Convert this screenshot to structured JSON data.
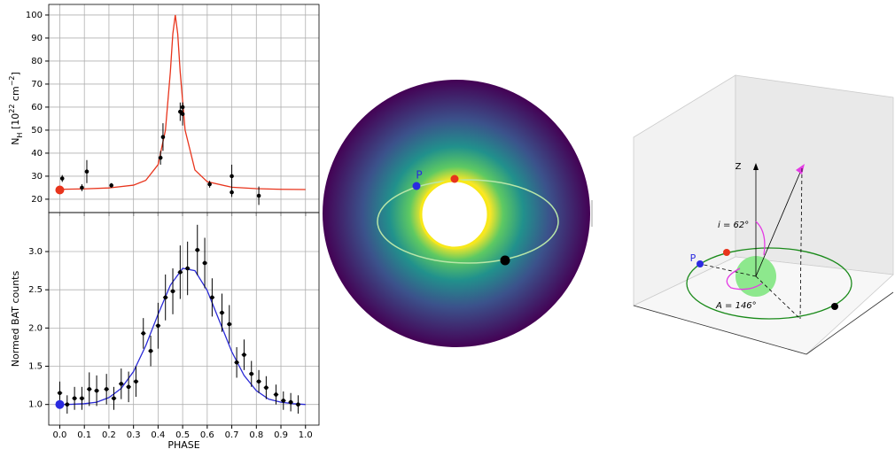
{
  "chart_data": [
    {
      "type": "errorbar",
      "ylabel_parts": [
        "N",
        "H",
        " [10",
        "22",
        " cm",
        "−2",
        "]"
      ],
      "ylabel_styles": [
        "normal",
        "sub",
        "normal",
        "sup",
        "normal",
        "sup",
        "normal"
      ],
      "xlim": [
        -0.045,
        1.055
      ],
      "ylim": [
        14.2,
        104.6
      ],
      "xticks": [
        0,
        0.1,
        0.2,
        0.3,
        0.4,
        0.5,
        0.6,
        0.7,
        0.8,
        0.9,
        1
      ],
      "yticks": [
        20,
        30,
        40,
        50,
        60,
        70,
        80,
        90,
        100
      ],
      "grid": true,
      "model": {
        "color": "#e8341c",
        "x": [
          0,
          0.1,
          0.2,
          0.3,
          0.35,
          0.4,
          0.43,
          0.45,
          0.46,
          0.47,
          0.48,
          0.49,
          0.51,
          0.55,
          0.6,
          0.7,
          0.8,
          0.9,
          1.0
        ],
        "values": [
          24.3,
          24.5,
          24.9,
          26.1,
          28.2,
          35.0,
          50.0,
          75.3,
          91.8,
          100,
          91.8,
          75.3,
          50.0,
          32.7,
          27.6,
          25.2,
          24.6,
          24.3,
          24.2
        ]
      },
      "points": {
        "color": "#000000",
        "x": [
          0.01,
          0.09,
          0.11,
          0.21,
          0.41,
          0.42,
          0.49,
          0.5,
          0.5,
          0.61,
          0.7,
          0.7,
          0.81
        ],
        "values": [
          29,
          25,
          32,
          26,
          38,
          47,
          58,
          57,
          60,
          26.5,
          23,
          30,
          21.5
        ],
        "yerr": [
          1.5,
          1.5,
          5,
          1,
          3,
          6,
          4,
          5,
          2,
          1.5,
          2,
          5,
          4
        ]
      },
      "marker": {
        "color": "#e8341c",
        "x": 0,
        "value": 24
      }
    },
    {
      "type": "errorbar",
      "ylabel": "Normed BAT counts",
      "xlabel": "PHASE",
      "xlim": [
        -0.045,
        1.055
      ],
      "ylim": [
        0.73,
        3.51
      ],
      "xticks": [
        {
          "value": 0,
          "label": "0.0"
        },
        0.1,
        0.2,
        0.3,
        0.4,
        0.5,
        0.6,
        0.7,
        0.8,
        0.9,
        {
          "value": 1,
          "label": "1.0"
        }
      ],
      "yticks": [
        {
          "value": 1,
          "label": "1.0"
        },
        1.5,
        {
          "value": 2,
          "label": "2.0"
        },
        2.5,
        {
          "value": 3,
          "label": "3.0"
        }
      ],
      "grid": true,
      "model": {
        "color": "#2a2ad6",
        "x": [
          0,
          0.05,
          0.1,
          0.15,
          0.2,
          0.25,
          0.3,
          0.35,
          0.4,
          0.45,
          0.5,
          0.55,
          0.6,
          0.65,
          0.7,
          0.75,
          0.8,
          0.85,
          0.9,
          0.95,
          1.0
        ],
        "values": [
          1.0,
          1.003,
          1.01,
          1.03,
          1.09,
          1.21,
          1.43,
          1.77,
          2.18,
          2.56,
          2.78,
          2.75,
          2.49,
          2.09,
          1.69,
          1.38,
          1.18,
          1.07,
          1.03,
          1.01,
          1.0
        ]
      },
      "points": {
        "color": "#000000",
        "x": [
          0,
          0.03,
          0.06,
          0.09,
          0.12,
          0.15,
          0.19,
          0.22,
          0.25,
          0.28,
          0.31,
          0.34,
          0.37,
          0.4,
          0.43,
          0.46,
          0.49,
          0.52,
          0.56,
          0.59,
          0.62,
          0.66,
          0.69,
          0.72,
          0.75,
          0.78,
          0.81,
          0.84,
          0.88,
          0.91,
          0.94,
          0.97
        ],
        "values": [
          1.15,
          1.0,
          1.08,
          1.08,
          1.2,
          1.18,
          1.2,
          1.08,
          1.27,
          1.23,
          1.3,
          1.93,
          1.7,
          2.03,
          2.4,
          2.48,
          2.73,
          2.78,
          3.02,
          2.85,
          2.4,
          2.2,
          2.05,
          1.55,
          1.65,
          1.4,
          1.3,
          1.22,
          1.13,
          1.05,
          1.03,
          1.0
        ],
        "yerr": [
          0.15,
          0.12,
          0.15,
          0.15,
          0.22,
          0.2,
          0.2,
          0.15,
          0.2,
          0.2,
          0.2,
          0.2,
          0.2,
          0.3,
          0.3,
          0.3,
          0.35,
          0.35,
          0.33,
          0.33,
          0.25,
          0.25,
          0.25,
          0.2,
          0.2,
          0.17,
          0.15,
          0.15,
          0.13,
          0.12,
          0.12,
          0.12
        ],
        "xerr": [
          0.01,
          0.01,
          0.01,
          0.01,
          0.01,
          0.01,
          0.01,
          0.01,
          0.01,
          0.01,
          0.01,
          0.01,
          0.01,
          0.01,
          0.01,
          0.01,
          0.01,
          0.01,
          0.01,
          0.01,
          0.01,
          0.01,
          0.01,
          0.01,
          0.01,
          0.01,
          0.01,
          0.01,
          0.01,
          0.01,
          0.01,
          0.01
        ]
      },
      "marker": {
        "color": "#2a2ae0",
        "x": 0,
        "value": 1.0
      }
    }
  ],
  "orbit_view": {
    "periastron_label": "P"
  },
  "geometry_3d": {
    "z_label": "Z",
    "inclination_label": "i = 62°",
    "periastron_label": "P",
    "azimuth_label": "A = 146°"
  }
}
